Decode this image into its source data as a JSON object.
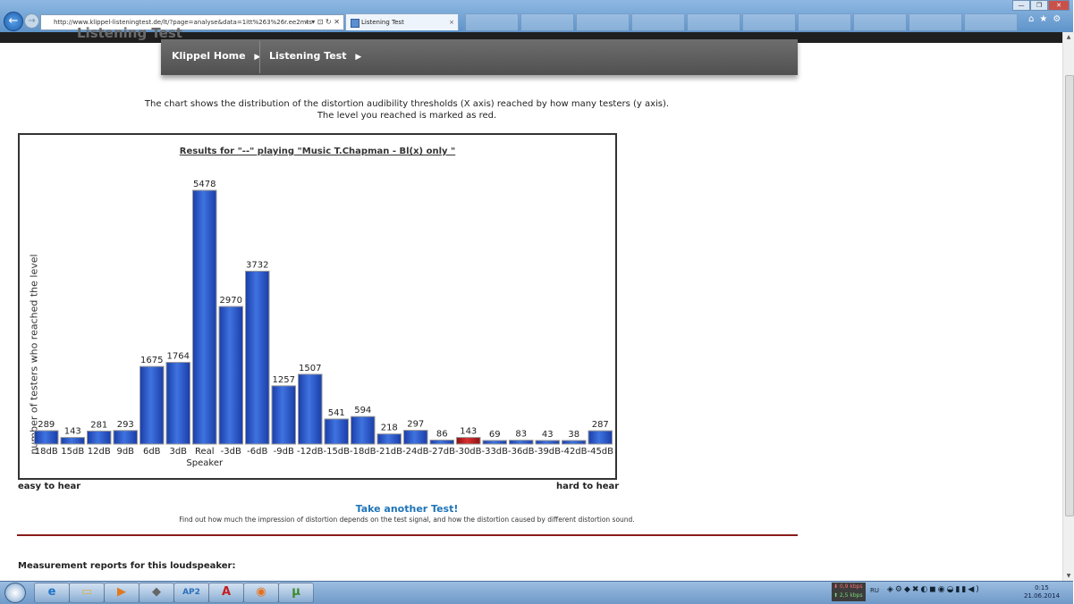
{
  "browser": {
    "address_url": "http://www.klippel-listeningtest.de/lt/?page=analyse&data=1itt%263%26r.ee2mts",
    "address_controls": "⌕ ▾ ⊡ ↻ ✕",
    "tab_title": "Listening Test",
    "tab_close": "×",
    "back_glyph": "←",
    "fwd_glyph": "→",
    "window_controls": [
      "—",
      "❐",
      "✕"
    ],
    "toolbar_icons": "⌂★⚙"
  },
  "site": {
    "header_title": "Listening Test",
    "nav": [
      {
        "label": "Klippel Home",
        "arrow": "▶"
      },
      {
        "label": "Listening Test",
        "arrow": "▶"
      }
    ]
  },
  "description": {
    "line1": "The chart shows the distribution of the distortion audibility thresholds (X axis) reached by how many testers (y axis).",
    "line2": "The level you reached is marked as red."
  },
  "chart_data": {
    "type": "bar",
    "title": "Results for \"--\" playing \"Music T.Chapman - Bl(x) only \"",
    "ylabel": "number of testers who reached the level",
    "xlabel": "",
    "categories": [
      "18dB",
      "15dB",
      "12dB",
      "9dB",
      "6dB",
      "3dB",
      "Real Speaker",
      "-3dB",
      "-6dB",
      "-9dB",
      "-12dB",
      "-15dB",
      "-18dB",
      "-21dB",
      "-24dB",
      "-27dB",
      "-30dB",
      "-33dB",
      "-36dB",
      "-39dB",
      "-42dB",
      "-45dB"
    ],
    "values": [
      289,
      143,
      281,
      293,
      1675,
      1764,
      5478,
      2970,
      3732,
      1257,
      1507,
      541,
      594,
      218,
      297,
      86,
      143,
      69,
      83,
      43,
      38,
      287
    ],
    "highlight_category": "-30dB",
    "bar_color": "#2f5fcf",
    "highlight_color": "#c0201f",
    "ylim": [
      0,
      5478
    ],
    "grid": false,
    "left_note": "easy to hear",
    "right_note": "hard to hear"
  },
  "footer_links": {
    "another_test": "Take another Test!",
    "find_out": "Find out how much the impression of distortion depends on the test signal, and how the distortion caused by different distortion sound."
  },
  "measurement_heading": "Measurement reports for this loudspeaker:",
  "taskbar": {
    "apps": [
      {
        "name": "ie",
        "glyph": "e",
        "color": "#1e73c8"
      },
      {
        "name": "explorer",
        "glyph": "▭",
        "color": "#d9b24a"
      },
      {
        "name": "media",
        "glyph": "▶",
        "color": "#e07a1f"
      },
      {
        "name": "app-cat",
        "glyph": "◆",
        "color": "#666666"
      },
      {
        "name": "ap2",
        "glyph": "AP2",
        "color": "#2a6fbd"
      },
      {
        "name": "pdf",
        "glyph": "A",
        "color": "#c41e1e"
      },
      {
        "name": "firefox",
        "glyph": "◉",
        "color": "#e8701a"
      },
      {
        "name": "utorrent",
        "glyph": "µ",
        "color": "#3b8a2a"
      }
    ],
    "net_down": "⬇ 0,9 kbps",
    "net_up": "⬆ 2,5 kbps",
    "lang": "RU",
    "tray_icons": "◈⚙◆✖◐◼◉◒▮▮◀)",
    "time": "0:15",
    "date": "21.06.2014"
  }
}
